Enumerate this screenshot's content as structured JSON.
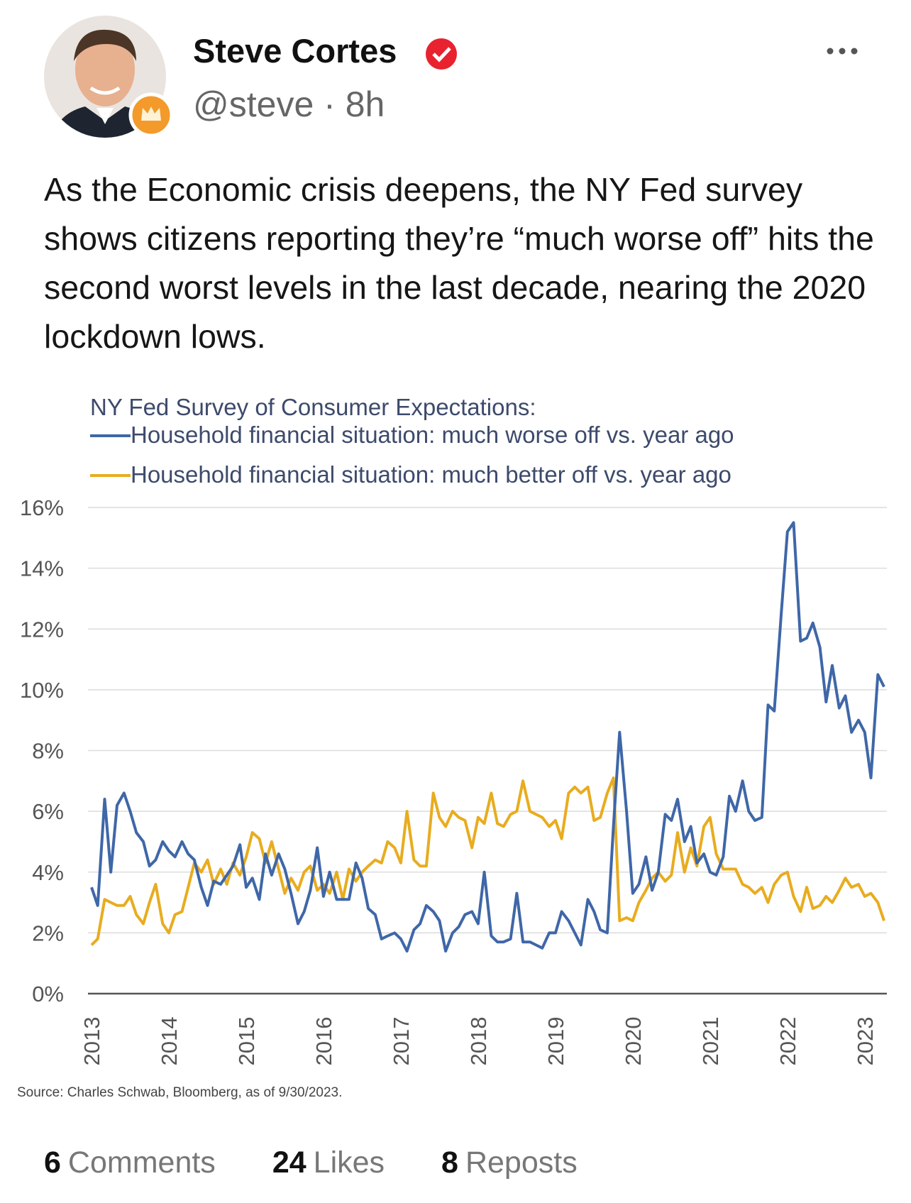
{
  "post": {
    "author": "Steve Cortes",
    "handle": "@steve",
    "separator": "·",
    "time": "8h",
    "text": "As the Economic crisis deepens, the NY Fed survey shows citizens reporting they’re “much worse off” hits the second worst levels in the last decade, nearing the 2020 lockdown lows."
  },
  "chart_data": {
    "type": "line",
    "title": "NY Fed Survey of Consumer Expectations:",
    "x": [
      2013,
      2013.08,
      2013.17,
      2013.25,
      2013.33,
      2013.42,
      2013.5,
      2013.58,
      2013.67,
      2013.75,
      2013.83,
      2013.92,
      2014,
      2014.08,
      2014.17,
      2014.25,
      2014.33,
      2014.42,
      2014.5,
      2014.58,
      2014.67,
      2014.75,
      2014.83,
      2014.92,
      2015,
      2015.08,
      2015.17,
      2015.25,
      2015.33,
      2015.42,
      2015.5,
      2015.58,
      2015.67,
      2015.75,
      2015.83,
      2015.92,
      2016,
      2016.08,
      2016.17,
      2016.25,
      2016.33,
      2016.42,
      2016.5,
      2016.58,
      2016.67,
      2016.75,
      2016.83,
      2016.92,
      2017,
      2017.08,
      2017.17,
      2017.25,
      2017.33,
      2017.42,
      2017.5,
      2017.58,
      2017.67,
      2017.75,
      2017.83,
      2017.92,
      2018,
      2018.08,
      2018.17,
      2018.25,
      2018.33,
      2018.42,
      2018.5,
      2018.58,
      2018.67,
      2018.75,
      2018.83,
      2018.92,
      2019,
      2019.08,
      2019.17,
      2019.25,
      2019.33,
      2019.42,
      2019.5,
      2019.58,
      2019.67,
      2019.75,
      2019.83,
      2019.92,
      2020,
      2020.08,
      2020.17,
      2020.25,
      2020.33,
      2020.42,
      2020.5,
      2020.58,
      2020.67,
      2020.75,
      2020.83,
      2020.92,
      2021,
      2021.08,
      2021.17,
      2021.25,
      2021.33,
      2021.42,
      2021.5,
      2021.58,
      2021.67,
      2021.75,
      2021.83,
      2021.92,
      2022,
      2022.08,
      2022.17,
      2022.25,
      2022.33,
      2022.42,
      2022.5,
      2022.58,
      2022.67,
      2022.75,
      2022.83,
      2022.92,
      2023,
      2023.08,
      2023.17,
      2023.25
    ],
    "series": [
      {
        "name": "Household financial situation: much worse off vs. year ago",
        "color": "#3f67a8",
        "values": [
          3.5,
          2.9,
          6.4,
          4.0,
          6.2,
          6.6,
          6.0,
          5.3,
          5.0,
          4.2,
          4.4,
          5.0,
          4.7,
          4.5,
          5.0,
          4.6,
          4.4,
          3.5,
          2.9,
          3.7,
          3.6,
          3.9,
          4.2,
          4.9,
          3.5,
          3.8,
          3.1,
          4.6,
          3.9,
          4.6,
          4.1,
          3.3,
          2.3,
          2.7,
          3.4,
          4.8,
          3.2,
          4.0,
          3.1,
          3.1,
          3.1,
          4.3,
          3.8,
          2.8,
          2.6,
          1.8,
          1.9,
          2.0,
          1.8,
          1.4,
          2.1,
          2.3,
          2.9,
          2.7,
          2.4,
          1.4,
          2.0,
          2.2,
          2.6,
          2.7,
          2.3,
          4.0,
          1.9,
          1.7,
          1.7,
          1.8,
          3.3,
          1.7,
          1.7,
          1.6,
          1.5,
          2.0,
          2.0,
          2.7,
          2.4,
          2.0,
          1.6,
          3.1,
          2.7,
          2.1,
          2.0,
          5.5,
          8.6,
          6.0,
          3.3,
          3.6,
          4.5,
          3.4,
          4.0,
          5.9,
          5.7,
          6.4,
          5.0,
          5.5,
          4.3,
          4.6,
          4.0,
          3.9,
          4.5,
          6.5,
          6.0,
          7.0,
          6.0,
          5.7,
          5.8,
          9.5,
          9.3,
          12.5,
          15.2,
          15.5,
          11.6,
          11.7,
          12.2,
          11.4,
          9.6,
          10.8,
          9.4,
          9.8,
          8.6,
          9.0,
          8.6,
          7.1,
          10.5,
          10.1
        ]
      },
      {
        "name": "Household financial situation: much better off vs. year ago",
        "color": "#e8ac1f",
        "values": [
          1.6,
          1.8,
          3.1,
          3.0,
          2.9,
          2.9,
          3.2,
          2.6,
          2.3,
          3.0,
          3.6,
          2.3,
          2.0,
          2.6,
          2.7,
          3.5,
          4.3,
          4.0,
          4.4,
          3.6,
          4.1,
          3.6,
          4.3,
          3.9,
          4.5,
          5.3,
          5.1,
          4.3,
          5.0,
          4.1,
          3.3,
          3.8,
          3.4,
          4.0,
          4.2,
          3.4,
          3.6,
          3.3,
          4.0,
          3.1,
          4.1,
          3.7,
          4.0,
          4.2,
          4.4,
          4.3,
          5.0,
          4.8,
          4.3,
          6.0,
          4.4,
          4.2,
          4.2,
          6.6,
          5.8,
          5.5,
          6.0,
          5.8,
          5.7,
          4.8,
          5.8,
          5.6,
          6.6,
          5.6,
          5.5,
          5.9,
          6.0,
          7.0,
          6.0,
          5.9,
          5.8,
          5.5,
          5.7,
          5.1,
          6.6,
          6.8,
          6.6,
          6.8,
          5.7,
          5.8,
          6.6,
          7.1,
          2.4,
          2.5,
          2.4,
          3.0,
          3.4,
          3.8,
          4.0,
          3.7,
          3.9,
          5.3,
          4.0,
          4.8,
          4.2,
          5.5,
          5.8,
          4.6,
          4.1,
          4.1,
          4.1,
          3.6,
          3.5,
          3.3,
          3.5,
          3.0,
          3.6,
          3.9,
          4.0,
          3.2,
          2.7,
          3.5,
          2.8,
          2.9,
          3.2,
          3.0,
          3.4,
          3.8,
          3.5,
          3.6,
          3.2,
          3.3,
          3.0,
          2.4
        ]
      }
    ],
    "xlim": [
      2013,
      2023.25
    ],
    "xticks": [
      2013,
      2014,
      2015,
      2016,
      2017,
      2018,
      2019,
      2020,
      2021,
      2022,
      2023
    ],
    "ylim": [
      0,
      16
    ],
    "yticks": [
      {
        "value": 0,
        "label": "0%"
      },
      {
        "value": 2,
        "label": "2%"
      },
      {
        "value": 4,
        "label": "4%"
      },
      {
        "value": 6,
        "label": "6%"
      },
      {
        "value": 8,
        "label": "8%"
      },
      {
        "value": 10,
        "label": "10%"
      },
      {
        "value": 12,
        "label": "12%"
      },
      {
        "value": 14,
        "label": "14%"
      },
      {
        "value": 16,
        "label": "16%"
      }
    ],
    "grid": true,
    "legend": "top-left",
    "source": "Source: Charles Schwab, Bloomberg, as of 9/30/2023."
  },
  "stats": [
    {
      "count": 6,
      "label": "Comments"
    },
    {
      "count": 24,
      "label": "Likes"
    },
    {
      "count": 8,
      "label": "Reposts"
    }
  ]
}
